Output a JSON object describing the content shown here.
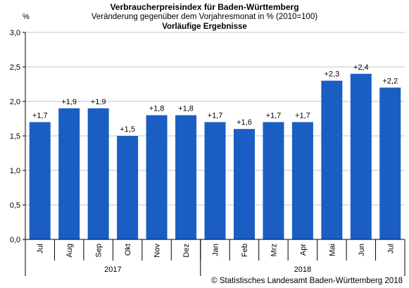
{
  "header": {
    "title": "Verbraucherpreisindex für Baden-Württemberg",
    "subtitle": "Veränderung gegenüber dem Vorjahresmonat in % (2010=100)",
    "note": "Vorläufige Ergebnisse",
    "unit": "%"
  },
  "footer": {
    "credit": "© Statistisches Landesamt Baden-Württemberg 2018"
  },
  "chart_data": {
    "type": "bar",
    "title": "Verbraucherpreisindex für Baden-Württemberg",
    "subtitle": "Veränderung gegenüber dem Vorjahresmonat in % (2010=100)",
    "ylabel": "%",
    "categories": [
      "Jul",
      "Aug",
      "Sep",
      "Okt",
      "Nov",
      "Dez",
      "Jan",
      "Feb",
      "Mrz",
      "Apr",
      "Mai",
      "Jun",
      "Jul"
    ],
    "values": [
      1.7,
      1.9,
      1.9,
      1.5,
      1.8,
      1.8,
      1.7,
      1.6,
      1.7,
      1.7,
      2.3,
      2.4,
      2.2
    ],
    "data_labels": [
      "+1,7",
      "+1,9",
      "+1,9",
      "+1,5",
      "+1,8",
      "+1,8",
      "+1,7",
      "+1,6",
      "+1,7",
      "+1,7",
      "+2,3",
      "+2,4",
      "+2,2"
    ],
    "ylim": [
      0,
      3.0
    ],
    "yticks": [
      0,
      0.5,
      1.0,
      1.5,
      2.0,
      2.5,
      3.0
    ],
    "ytick_labels": [
      "0,0",
      "0,5",
      "1,0",
      "1,5",
      "2,0",
      "2,5",
      "3,0"
    ],
    "groups": [
      {
        "label": "2017",
        "start": 0,
        "end": 5
      },
      {
        "label": "2018",
        "start": 6,
        "end": 12
      }
    ],
    "grid": true,
    "bar_color": "#1a5ec4",
    "grid_color": "#c4c4c4"
  }
}
